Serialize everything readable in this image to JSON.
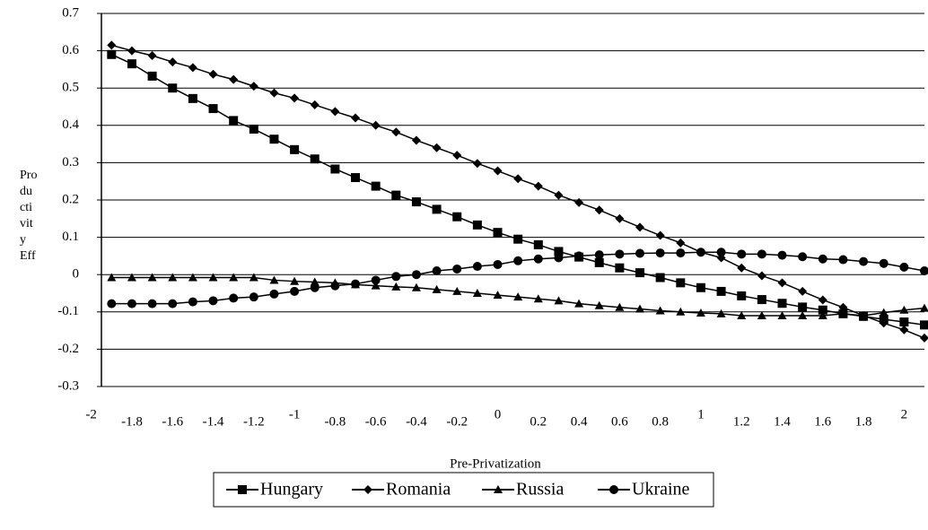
{
  "chart_data": {
    "type": "line",
    "y_label_lines": [
      "Pro",
      "du",
      "cti",
      "vit",
      "y",
      "Eff"
    ],
    "x_label": "Pre-Privatization",
    "x": [
      -1.9,
      -1.8,
      -1.7,
      -1.6,
      -1.5,
      -1.4,
      -1.3,
      -1.2,
      -1.1,
      -1.0,
      -0.9,
      -0.8,
      -0.7,
      -0.6,
      -0.5,
      -0.4,
      -0.3,
      -0.2,
      -0.1,
      0,
      0.1,
      0.2,
      0.3,
      0.4,
      0.5,
      0.6,
      0.7,
      0.8,
      0.9,
      1.0,
      1.1,
      1.2,
      1.3,
      1.4,
      1.5,
      1.6,
      1.7,
      1.8,
      1.9,
      2.0,
      2.1
    ],
    "series": [
      {
        "name": "Hungary",
        "color": "#000000",
        "marker": "square",
        "values": [
          0.59,
          0.565,
          0.532,
          0.5,
          0.472,
          0.445,
          0.413,
          0.39,
          0.363,
          0.335,
          0.31,
          0.283,
          0.26,
          0.237,
          0.213,
          0.195,
          0.175,
          0.155,
          0.133,
          0.113,
          0.095,
          0.08,
          0.062,
          0.047,
          0.032,
          0.018,
          0.005,
          -0.008,
          -0.022,
          -0.035,
          -0.045,
          -0.057,
          -0.067,
          -0.077,
          -0.087,
          -0.095,
          -0.105,
          -0.112,
          -0.12,
          -0.127,
          -0.135
        ]
      },
      {
        "name": "Romania",
        "color": "#000000",
        "marker": "diamond",
        "values": [
          0.615,
          0.6,
          0.587,
          0.57,
          0.555,
          0.537,
          0.523,
          0.505,
          0.487,
          0.473,
          0.455,
          0.437,
          0.42,
          0.4,
          0.382,
          0.36,
          0.34,
          0.32,
          0.298,
          0.278,
          0.257,
          0.237,
          0.213,
          0.193,
          0.173,
          0.15,
          0.127,
          0.105,
          0.085,
          0.06,
          0.045,
          0.018,
          -0.003,
          -0.022,
          -0.045,
          -0.068,
          -0.088,
          -0.11,
          -0.13,
          -0.148,
          -0.17
        ]
      },
      {
        "name": "Russia",
        "color": "#000000",
        "marker": "triangle",
        "values": [
          -0.008,
          -0.008,
          -0.008,
          -0.008,
          -0.008,
          -0.008,
          -0.008,
          -0.008,
          -0.015,
          -0.018,
          -0.02,
          -0.022,
          -0.027,
          -0.03,
          -0.033,
          -0.035,
          -0.04,
          -0.045,
          -0.05,
          -0.055,
          -0.06,
          -0.065,
          -0.07,
          -0.078,
          -0.083,
          -0.088,
          -0.092,
          -0.097,
          -0.1,
          -0.103,
          -0.105,
          -0.11,
          -0.11,
          -0.11,
          -0.11,
          -0.11,
          -0.105,
          -0.11,
          -0.102,
          -0.095,
          -0.09
        ]
      },
      {
        "name": "Ukraine",
        "color": "#000000",
        "marker": "circle",
        "values": [
          -0.078,
          -0.078,
          -0.078,
          -0.078,
          -0.073,
          -0.07,
          -0.063,
          -0.06,
          -0.052,
          -0.045,
          -0.035,
          -0.03,
          -0.025,
          -0.015,
          -0.005,
          0,
          0.01,
          0.015,
          0.022,
          0.027,
          0.037,
          0.042,
          0.045,
          0.05,
          0.053,
          0.055,
          0.057,
          0.058,
          0.058,
          0.06,
          0.06,
          0.055,
          0.055,
          0.052,
          0.048,
          0.042,
          0.04,
          0.035,
          0.03,
          0.02,
          0.01
        ]
      }
    ],
    "xlim": [
      -1.95,
      2.1
    ],
    "xticks": [
      -2,
      -1.8,
      -1.6,
      -1.4,
      -1.2,
      -1,
      -0.8,
      -0.6,
      -0.4,
      -0.2,
      0,
      0.2,
      0.4,
      0.6,
      0.8,
      1,
      1.2,
      1.4,
      1.6,
      1.8,
      2
    ],
    "ylim": [
      -0.3,
      0.7
    ],
    "yticks": [
      -0.3,
      -0.2,
      -0.1,
      0,
      0.1,
      0.2,
      0.3,
      0.4,
      0.5,
      0.6,
      0.7
    ],
    "grid": true,
    "legend": "bottom"
  }
}
